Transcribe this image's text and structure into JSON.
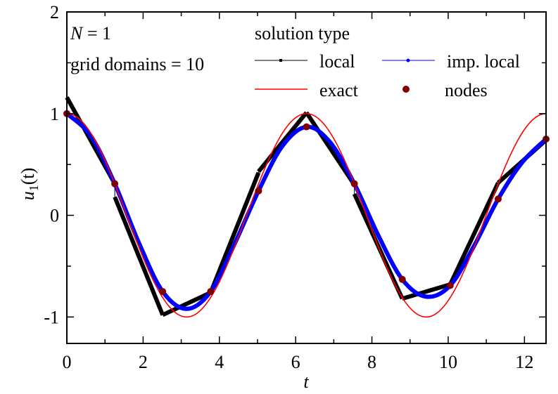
{
  "chart_data": {
    "type": "line",
    "title": "",
    "xlabel": "t",
    "ylabel": "u_1(t)",
    "xlim": [
      0,
      12.566
    ],
    "ylim": [
      -1.26,
      2
    ],
    "xticks": [
      0,
      2,
      4,
      6,
      8,
      10,
      12
    ],
    "yticks": [
      -1,
      0,
      1,
      2
    ],
    "x_tick_labels": [
      "0",
      "2",
      "4",
      "6",
      "8",
      "10",
      "12"
    ],
    "y_tick_labels": [
      "-1",
      "0",
      "1",
      "2"
    ],
    "grid": false,
    "annotations": [
      "N = 1",
      "grid domains = 10"
    ],
    "legend": {
      "title": "solution type",
      "position": "upper right",
      "entries": [
        {
          "label": "local",
          "color": "#000000",
          "style": "line-square-markers"
        },
        {
          "label": "imp. local",
          "color": "#0000ff",
          "style": "line-circle-markers"
        },
        {
          "label": "exact",
          "color": "#ff0000",
          "style": "line"
        },
        {
          "label": "nodes",
          "color": "#800000",
          "style": "circle-markers"
        }
      ]
    },
    "series": [
      {
        "name": "exact",
        "color": "#ff0000",
        "function": "cos(t)",
        "x": [
          0,
          1.571,
          3.142,
          4.712,
          6.283,
          7.854,
          9.425,
          10.996,
          12.566
        ],
        "values": [
          1,
          0,
          -1,
          0,
          1,
          0,
          -1,
          0,
          1
        ]
      },
      {
        "name": "nodes",
        "color": "#800000",
        "x": [
          0,
          1.257,
          2.513,
          3.77,
          5.027,
          6.283,
          7.54,
          8.796,
          10.053,
          11.31,
          12.566
        ],
        "values": [
          1.0,
          0.31,
          -0.75,
          -0.75,
          0.24,
          0.87,
          0.31,
          -0.63,
          -0.69,
          0.16,
          0.75
        ]
      },
      {
        "name": "local",
        "color": "#000000",
        "segments": [
          {
            "x": [
              0,
              1.257
            ],
            "values": [
              1.16,
              0.31
            ]
          },
          {
            "x": [
              1.257,
              2.513
            ],
            "values": [
              0.18,
              -0.98
            ]
          },
          {
            "x": [
              2.513,
              3.77
            ],
            "values": [
              -0.98,
              -0.76
            ]
          },
          {
            "x": [
              3.77,
              5.027
            ],
            "values": [
              -0.76,
              0.42
            ]
          },
          {
            "x": [
              5.027,
              6.283
            ],
            "values": [
              0.43,
              1.01
            ]
          },
          {
            "x": [
              6.283,
              7.54
            ],
            "values": [
              1.01,
              0.3
            ]
          },
          {
            "x": [
              7.54,
              8.796
            ],
            "values": [
              0.21,
              -0.82
            ]
          },
          {
            "x": [
              8.796,
              10.053
            ],
            "values": [
              -0.82,
              -0.68
            ]
          },
          {
            "x": [
              10.053,
              11.31
            ],
            "values": [
              -0.68,
              0.32
            ]
          },
          {
            "x": [
              11.31,
              12.566
            ],
            "values": [
              0.32,
              0.74
            ]
          }
        ]
      },
      {
        "name": "imp. local",
        "color": "#0000ff",
        "x": [
          0,
          0.63,
          1.257,
          1.9,
          2.513,
          3.14,
          3.77,
          4.4,
          5.027,
          5.65,
          6.283,
          6.9,
          7.54,
          8.17,
          8.796,
          9.42,
          10.053,
          10.68,
          11.31,
          11.94,
          12.566
        ],
        "values": [
          1.0,
          0.78,
          0.31,
          -0.28,
          -0.75,
          -0.92,
          -0.75,
          -0.28,
          0.24,
          0.68,
          0.87,
          0.72,
          0.31,
          -0.2,
          -0.63,
          -0.8,
          -0.69,
          -0.3,
          0.16,
          0.52,
          0.75
        ]
      }
    ]
  },
  "annotations": {
    "n_label": "N",
    "n_value": " = 1",
    "grid_domains": "grid domains = 10"
  },
  "legend": {
    "title": "solution type",
    "local": "local",
    "imp_local": "imp. local",
    "exact": "exact",
    "nodes": "nodes"
  },
  "axes": {
    "xlabel": "t",
    "ylabel_main": "u",
    "ylabel_sub": "1",
    "ylabel_args": "(t)"
  }
}
